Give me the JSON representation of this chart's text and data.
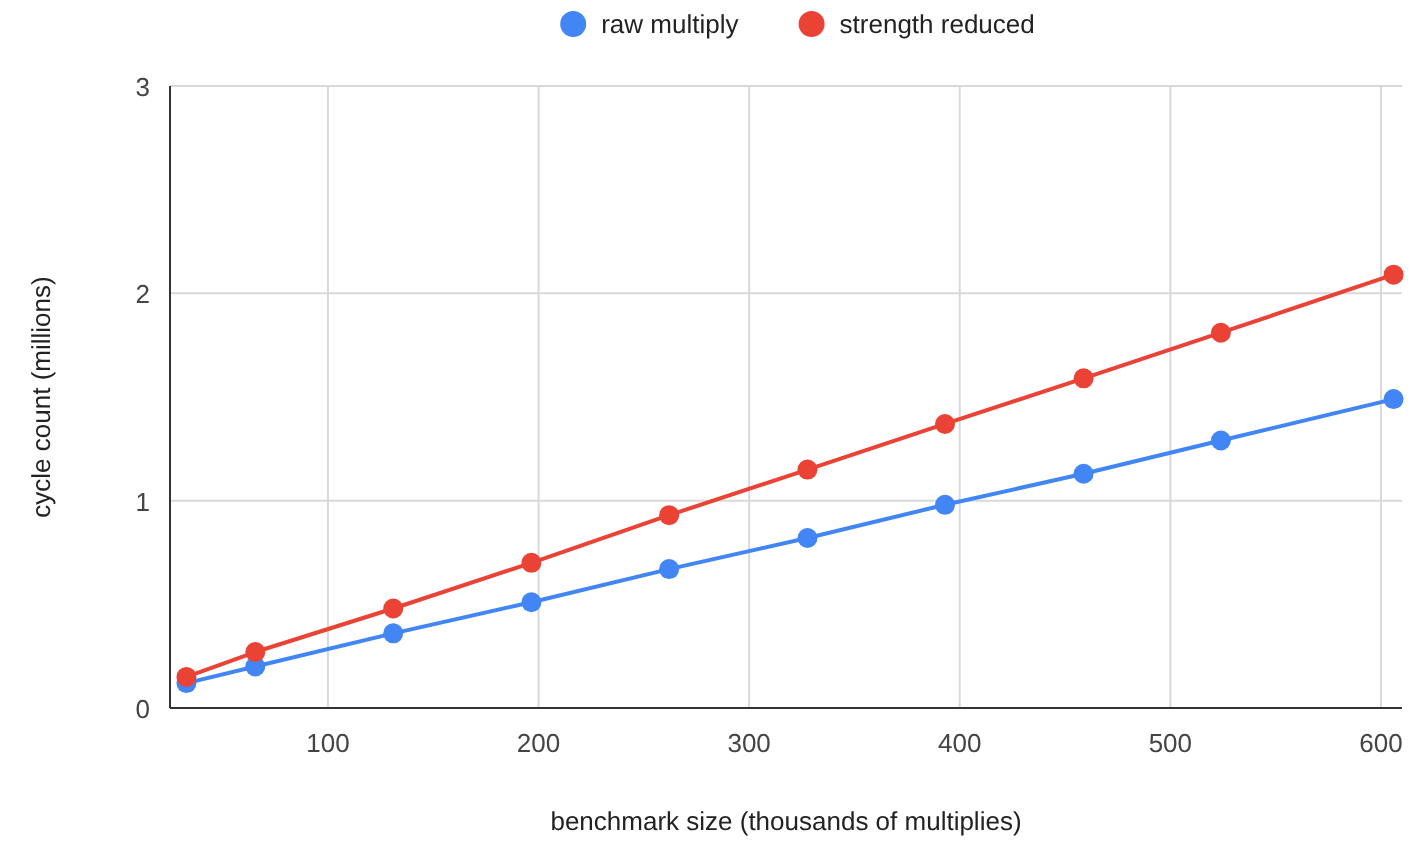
{
  "chart_data": {
    "type": "line",
    "xlabel": "benchmark size (thousands of multiplies)",
    "ylabel": "cycle count (millions)",
    "x": [
      32.8,
      65.5,
      131,
      196.6,
      262,
      327.7,
      393,
      458.8,
      524,
      606
    ],
    "series": [
      {
        "name": "raw multiply",
        "color": "#4285f4",
        "values": [
          0.12,
          0.2,
          0.36,
          0.51,
          0.67,
          0.82,
          0.98,
          1.13,
          1.29,
          1.49
        ]
      },
      {
        "name": "strength reduced",
        "color": "#ea4335",
        "values": [
          0.15,
          0.27,
          0.48,
          0.7,
          0.93,
          1.15,
          1.37,
          1.59,
          1.81,
          2.09
        ]
      }
    ],
    "xlim": [
      25,
      610
    ],
    "xticks": [
      100,
      200,
      300,
      400,
      500,
      600
    ],
    "ylim": [
      0,
      3
    ],
    "yticks": [
      0,
      1,
      2,
      3
    ],
    "grid": true,
    "legend": "top",
    "marker": "circle",
    "line_style": "solid"
  }
}
